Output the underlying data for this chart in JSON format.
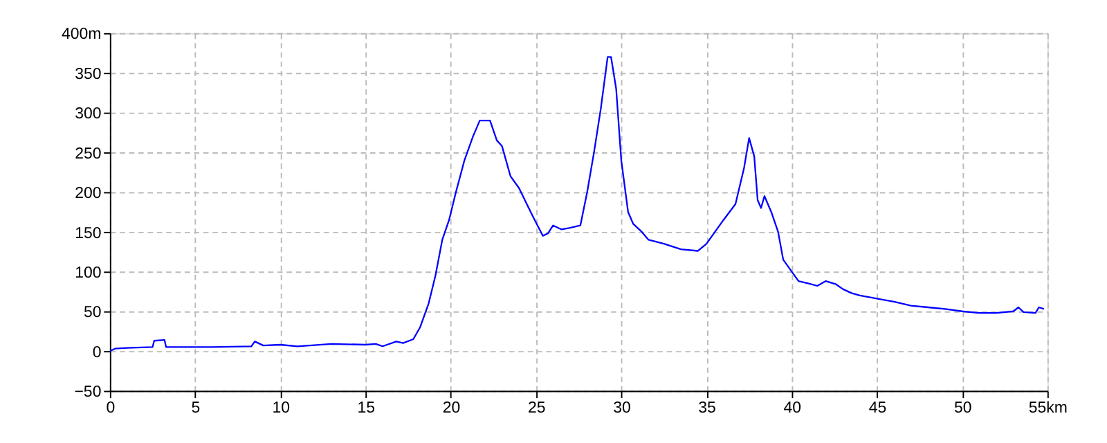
{
  "chart_data": {
    "type": "line",
    "grid": true,
    "xlim": [
      0,
      55
    ],
    "ylim": [
      -50,
      400
    ],
    "xticks": [
      0,
      5,
      10,
      15,
      20,
      25,
      30,
      35,
      40,
      45,
      50,
      {
        "value": 55,
        "label": "55km"
      }
    ],
    "yticks": [
      -50,
      0,
      50,
      100,
      150,
      200,
      250,
      300,
      350,
      {
        "value": 400,
        "label": "400m"
      }
    ],
    "series": [
      {
        "color": "#0000ff",
        "x": [
          0,
          0.3,
          1,
          2.5,
          2.6,
          3.2,
          3.3,
          6,
          8.3,
          8.5,
          9,
          10,
          11,
          13,
          15,
          15.6,
          16,
          16.8,
          17.2,
          17.8,
          18.2,
          18.7,
          19.1,
          19.5,
          19.9,
          20.3,
          20.8,
          21.3,
          21.7,
          22.3,
          22.7,
          23,
          23.5,
          24,
          24.8,
          25.4,
          25.7,
          26,
          26.5,
          27,
          27.6,
          28,
          28.4,
          28.8,
          29.2,
          29.4,
          29.7,
          30,
          30.4,
          30.7,
          31.2,
          31.6,
          32.5,
          33.5,
          34.5,
          35,
          35.5,
          36,
          36.7,
          37.2,
          37.5,
          37.8,
          38,
          38.2,
          38.4,
          38.8,
          39.2,
          39.5,
          40,
          40.4,
          41,
          41.5,
          42,
          42.6,
          43,
          43.5,
          44,
          45,
          46,
          47,
          48,
          49,
          50,
          51,
          52,
          53,
          53.3,
          53.6,
          54.3,
          54.5,
          54.8
        ],
        "values": [
          0,
          3,
          4,
          5,
          13,
          14,
          5,
          5,
          6,
          12,
          7,
          8,
          6,
          9,
          8,
          9,
          6,
          12,
          10,
          15,
          30,
          60,
          95,
          140,
          165,
          200,
          240,
          270,
          290,
          290,
          265,
          258,
          220,
          205,
          170,
          145,
          148,
          158,
          153,
          155,
          158,
          200,
          250,
          305,
          370,
          370,
          330,
          240,
          175,
          160,
          150,
          140,
          135,
          128,
          126,
          135,
          150,
          165,
          185,
          230,
          268,
          245,
          190,
          180,
          195,
          175,
          150,
          115,
          100,
          88,
          85,
          82,
          88,
          84,
          78,
          73,
          70,
          66,
          62,
          57,
          55,
          53,
          50,
          48,
          48,
          50,
          55,
          49,
          48,
          55,
          53
        ]
      }
    ]
  }
}
